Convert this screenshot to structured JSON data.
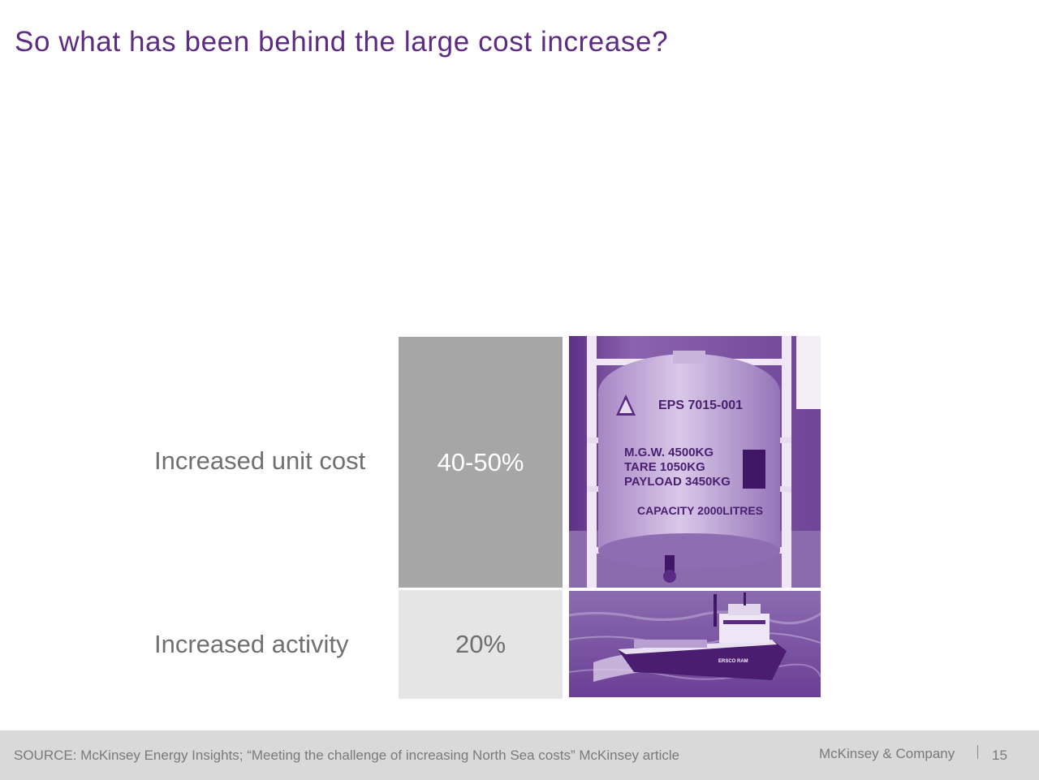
{
  "slide": {
    "title": "So what has been behind the large cost increase?"
  },
  "rows": [
    {
      "label": "Increased unit cost",
      "value": "40-50%"
    },
    {
      "label": "Increased activity",
      "value": "20%"
    }
  ],
  "photos": {
    "tank": {
      "code": "EPS 7015-001",
      "line1": "M.G.W.  4500KG",
      "line2": "TARE    1050KG",
      "line3": "PAYLOAD 3450KG",
      "line4": "CAPACITY 2000LITRES"
    },
    "ship": {
      "name": "ERSCO RAM"
    }
  },
  "footer": {
    "source": "SOURCE: McKinsey Energy Insights; “Meeting the challenge of increasing North Sea costs” McKinsey article",
    "company": "McKinsey & Company",
    "page": "15"
  },
  "colors": {
    "title": "#5e2a82",
    "dark_block": "#a6a6a6",
    "light_block": "#e5e5e5",
    "photo_tint": "#7b4a9e",
    "footer": "#d9d9d9"
  }
}
